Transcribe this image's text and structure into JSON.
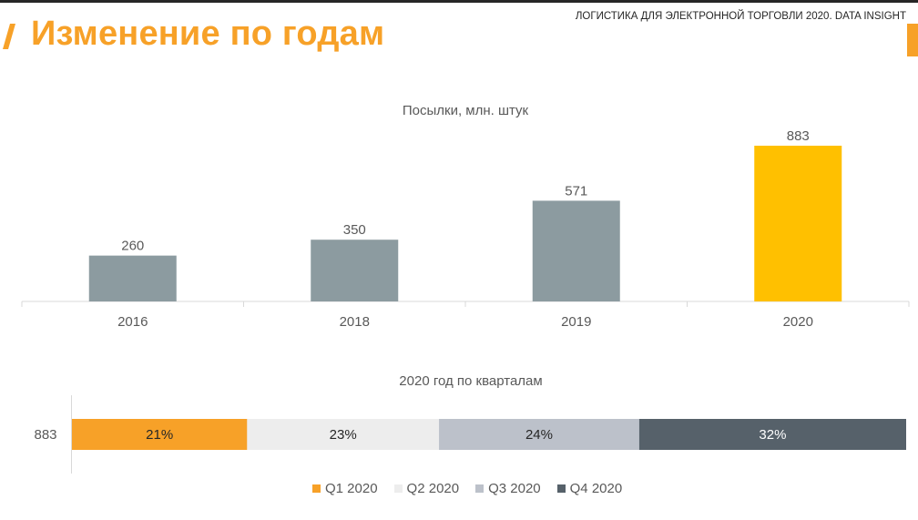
{
  "header": {
    "title": "Изменение по годам",
    "report_label": "ЛОГИСТИКА ДЛЯ ЭЛЕКТРОННОЙ ТОРГОВЛИ 2020. DATA INSIGHT"
  },
  "colors": {
    "accent": "#f7a128",
    "bar_gray": "#8c9ba0",
    "bar_highlight": "#ffc000"
  },
  "chart_data": [
    {
      "type": "bar",
      "title": "Посылки, млн. штук",
      "categories": [
        "2016",
        "2018",
        "2019",
        "2020"
      ],
      "values": [
        260,
        350,
        571,
        883
      ],
      "data_labels": [
        "260",
        "350",
        "571",
        "883"
      ],
      "xlabel": "",
      "ylabel": "",
      "ylim": [
        0,
        883
      ],
      "grid": false
    },
    {
      "type": "bar",
      "orientation": "horizontal-stacked",
      "title": "2020 год по кварталам",
      "categories": [
        "883"
      ],
      "series": [
        {
          "name": "Q1 2020",
          "values": [
            21
          ],
          "label": "21%",
          "color": "#f7a128"
        },
        {
          "name": "Q2 2020",
          "values": [
            23
          ],
          "label": "23%",
          "color": "#ededed"
        },
        {
          "name": "Q3 2020",
          "values": [
            24
          ],
          "label": "24%",
          "color": "#bcc1ca"
        },
        {
          "name": "Q4 2020",
          "values": [
            32
          ],
          "label": "32%",
          "color": "#56616a"
        }
      ],
      "legend": "bottom",
      "xlim": [
        0,
        100
      ]
    }
  ]
}
